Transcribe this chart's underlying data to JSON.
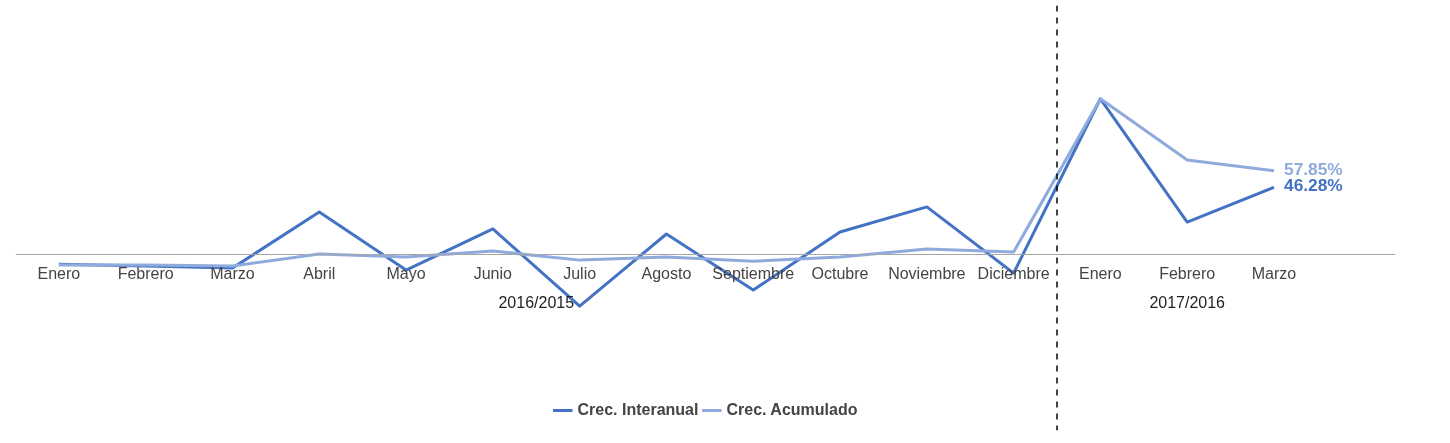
{
  "chart_data": {
    "type": "line",
    "categories": [
      "Enero",
      "Febrero",
      "Marzo",
      "Abril",
      "Mayo",
      "Junio",
      "Julio",
      "Agosto",
      "Septiembre",
      "Octubre",
      "Noviembre",
      "Diciembre",
      "Enero",
      "Febrero",
      "Marzo"
    ],
    "series": [
      {
        "name": "Crec. Interanual",
        "color": "#4472c4",
        "values": [
          -7,
          -8.3,
          -9.7,
          29.2,
          -11.1,
          17.4,
          -36.1,
          13.9,
          -25,
          15.3,
          32.7,
          -13.2,
          107.7,
          22.2,
          46.28
        ],
        "value_labels": [
          null,
          null,
          null,
          null,
          null,
          null,
          null,
          null,
          null,
          null,
          null,
          null,
          null,
          null,
          "46.28%"
        ]
      },
      {
        "name": "Crec. Acumulado",
        "color": "#8faadc",
        "values": [
          -7.6,
          -7.6,
          -8.3,
          0,
          -2.1,
          2.1,
          -4.2,
          -2.1,
          -4.9,
          -2.1,
          3.5,
          1.4,
          107.7,
          65.3,
          57.85
        ],
        "value_labels": [
          null,
          null,
          null,
          null,
          null,
          null,
          null,
          null,
          null,
          null,
          null,
          null,
          null,
          null,
          "57.85%"
        ]
      }
    ],
    "annotations": [
      "2016/2015",
      "2017/2016"
    ],
    "legend": "bottom",
    "marker": "none",
    "line_style": "solid"
  }
}
